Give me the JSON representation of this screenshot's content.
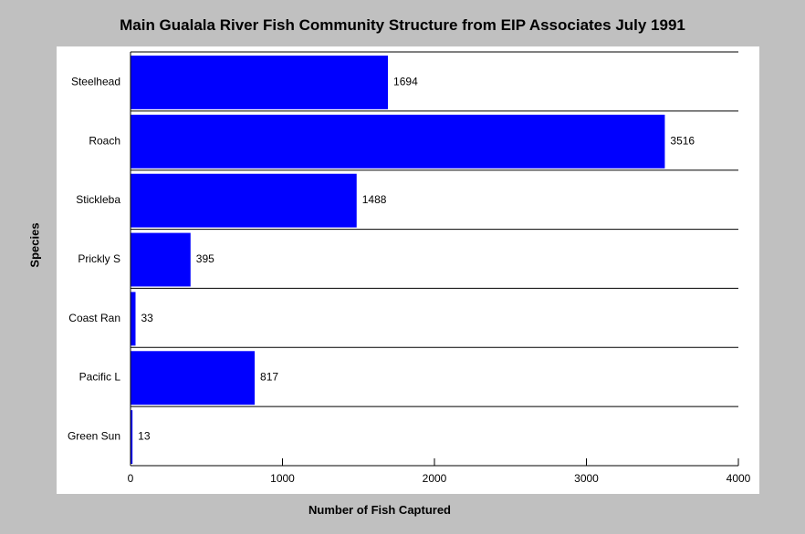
{
  "chart_data": {
    "type": "bar",
    "orientation": "horizontal",
    "title": "Main Gualala River Fish Community Structure from EIP Associates July 1991",
    "xlabel": "Number of Fish Captured",
    "ylabel": "Species",
    "categories": [
      "Steelhead",
      "Roach",
      "Stickleba",
      "Prickly S",
      "Coast Ran",
      "Pacific L",
      "Green Sun"
    ],
    "values": [
      1694,
      3516,
      1488,
      395,
      33,
      817,
      13
    ],
    "xlim": [
      0,
      4000
    ],
    "xticks": [
      0,
      1000,
      2000,
      3000,
      4000
    ],
    "bar_color": "#0000ff",
    "background_color": "#c0c0c0",
    "plot_background": "#ffffff",
    "grid": false,
    "legend": "none"
  }
}
